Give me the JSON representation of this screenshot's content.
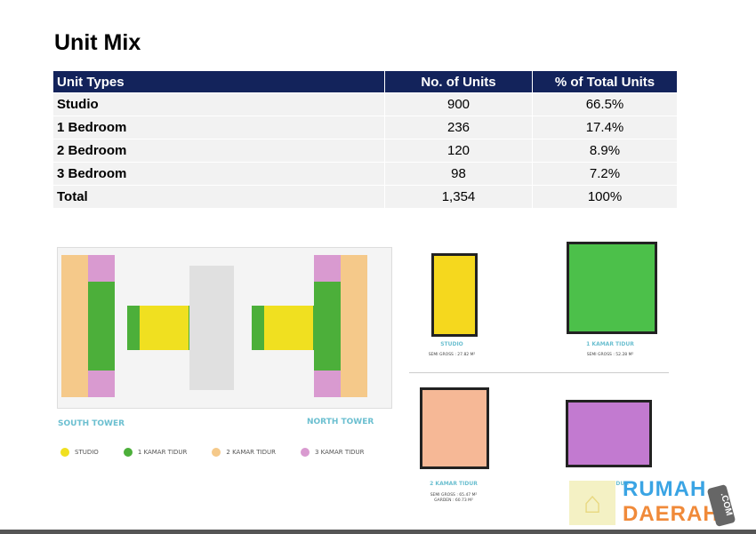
{
  "title": "Unit Mix",
  "table": {
    "headers": [
      "Unit Types",
      "No. of Units",
      "% of Total Units"
    ],
    "rows": [
      [
        "Studio",
        "900",
        "66.5%"
      ],
      [
        "1 Bedroom",
        "236",
        "17.4%"
      ],
      [
        "2 Bedroom",
        "120",
        "8.9%"
      ],
      [
        "3 Bedroom",
        "98",
        "7.2%"
      ],
      [
        "Total",
        "1,354",
        "100%"
      ]
    ]
  },
  "siteplan": {
    "south": "SOUTH TOWER",
    "north": "NORTH TOWER"
  },
  "legend": [
    {
      "label": "STUDIO",
      "color": "#f0e020"
    },
    {
      "label": "1 KAMAR TIDUR",
      "color": "#4caf3a"
    },
    {
      "label": "2 KAMAR TIDUR",
      "color": "#f5c98a"
    },
    {
      "label": "3 KAMAR TIDUR",
      "color": "#d99ad0"
    }
  ],
  "units": [
    {
      "name": "STUDIO",
      "area": "SEMI GROSS : 27.82 M²",
      "color": "#f5d81e"
    },
    {
      "name": "1 KAMAR TIDUR",
      "area": "SEMI GROSS : 52.28 M²",
      "color": "#4cc04a"
    },
    {
      "name": "2 KAMAR TIDUR",
      "area": "SEMI GROSS : 65.47 M²",
      "area2": "GARDEN : 60.73 M²",
      "color": "#f6b896"
    },
    {
      "name": "3 KAMAR TIDUR",
      "color": "#c27ad0"
    }
  ],
  "watermark": {
    "a": "RUMAH",
    "b": "DAERAH",
    "c": ".COM"
  }
}
